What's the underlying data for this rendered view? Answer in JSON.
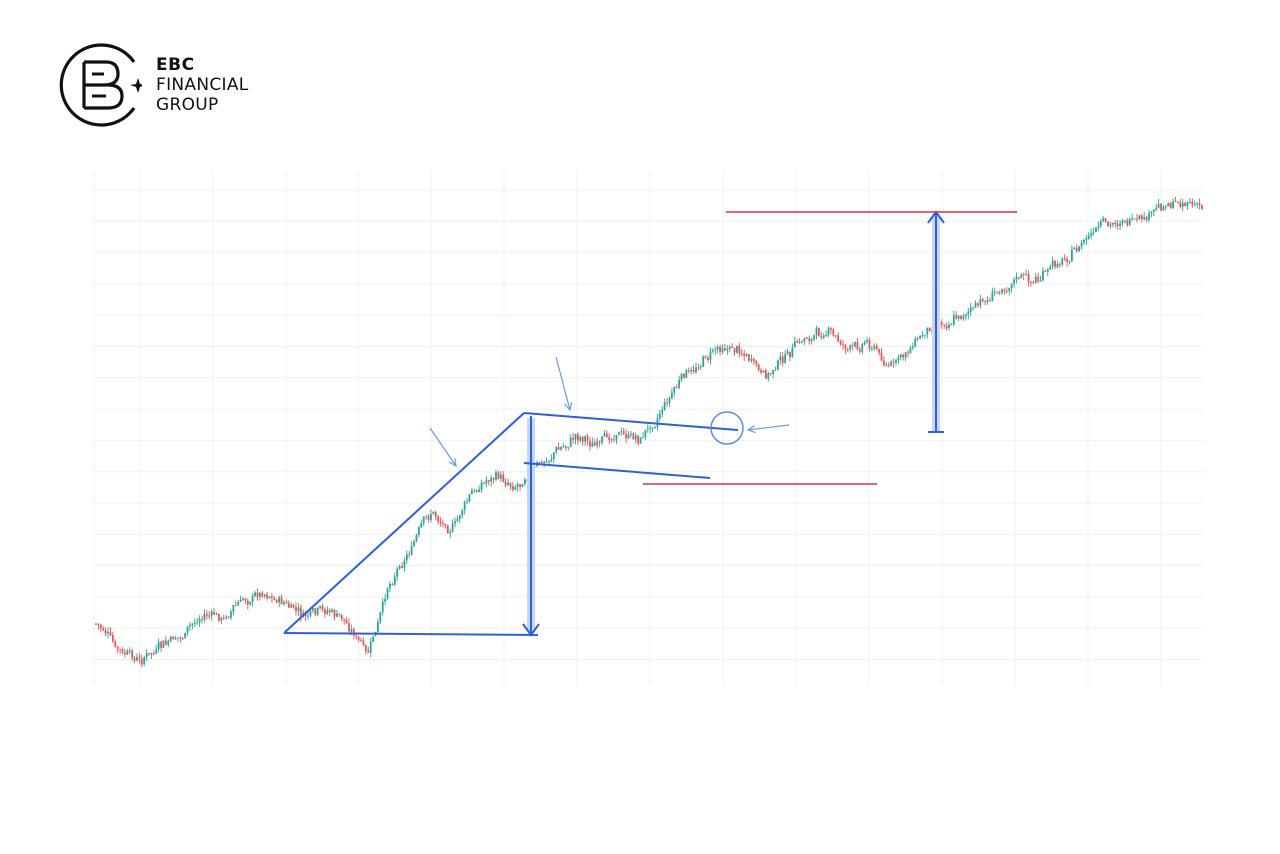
{
  "brand": {
    "line1": "EBC",
    "line2": "FINANCIAL",
    "line3": "GROUP"
  },
  "colors": {
    "up_candle": "#26a69a",
    "down_candle": "#ef5350",
    "pattern_lines": "#2f5fdc",
    "target_lines": "#d9333f",
    "measure_fill": "#c6d6f5",
    "grid": "#eef1f4"
  },
  "chart_data": {
    "type": "line",
    "title": "",
    "xlabel": "",
    "ylabel": "",
    "grid": true,
    "legend": "none",
    "series": [
      {
        "values": [
          0.12,
          0.06,
          0.04,
          0.07,
          0.09,
          0.14,
          0.13,
          0.17,
          0.19,
          0.16,
          0.13,
          0.15,
          0.12,
          0.05,
          0.21,
          0.28,
          0.36,
          0.32,
          0.4,
          0.44,
          0.41,
          0.45,
          0.49,
          0.52,
          0.5,
          0.53,
          0.51,
          0.57,
          0.64,
          0.68,
          0.71,
          0.7,
          0.64,
          0.69,
          0.73,
          0.74,
          0.7,
          0.72,
          0.66,
          0.71,
          0.75,
          0.77,
          0.79,
          0.82,
          0.86,
          0.85,
          0.89,
          0.92,
          0.96,
          0.98,
          0.97,
          1.01,
          1.02,
          1.0
        ]
      }
    ],
    "annotations": [
      "flagpole",
      "flag-upper",
      "flag-lower",
      "breakout-circle",
      "target-line",
      "stop-line"
    ]
  }
}
